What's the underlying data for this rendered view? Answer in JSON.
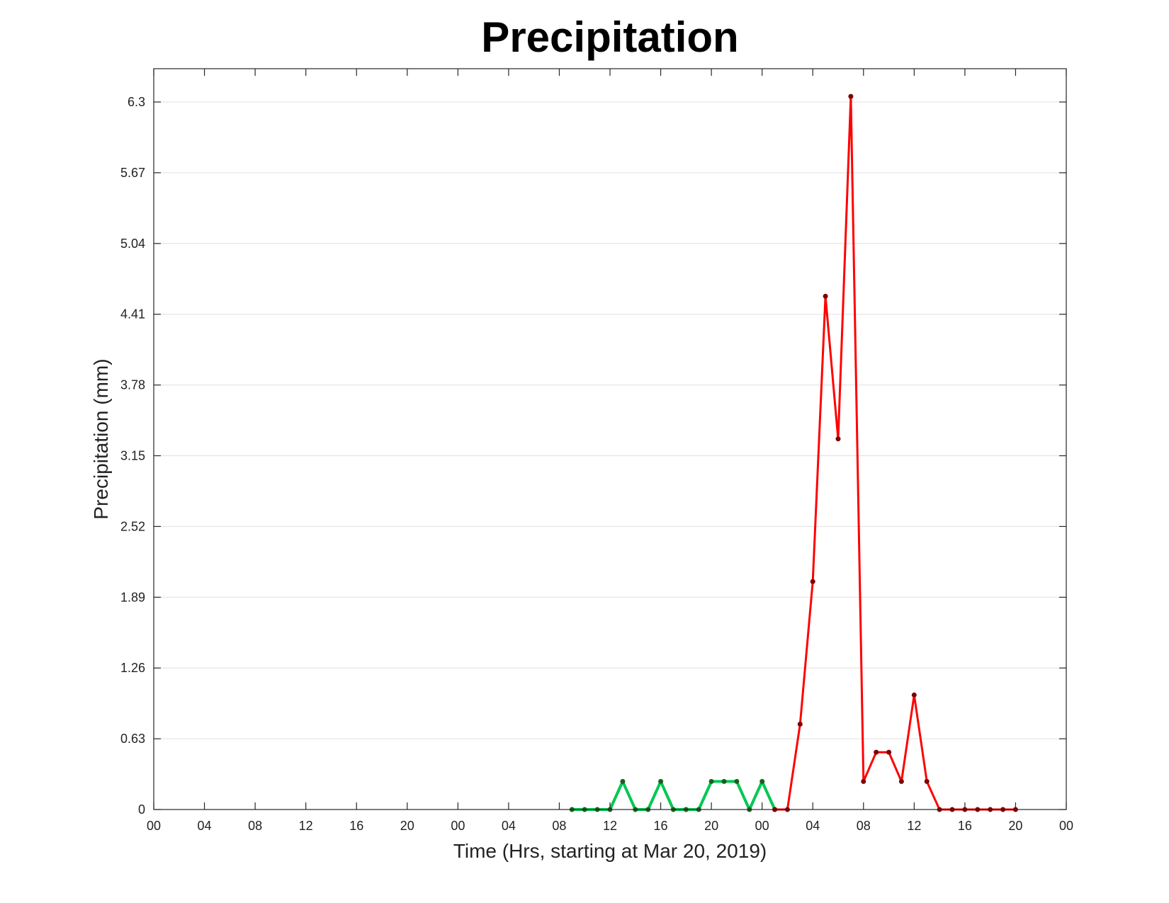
{
  "chart_data": {
    "type": "line",
    "title": "Precipitation",
    "xlabel": "Time (Hrs, starting at Mar 20, 2019)",
    "ylabel": "Precipitation (mm)",
    "x_unit": "hours",
    "xlim": [
      0,
      72
    ],
    "ylim": [
      0,
      6.6
    ],
    "x_tick_values": [
      0,
      4,
      8,
      12,
      16,
      20,
      24,
      28,
      32,
      36,
      40,
      44,
      48,
      52,
      56,
      60,
      64,
      68,
      72
    ],
    "x_tick_labels": [
      "00",
      "04",
      "08",
      "12",
      "16",
      "20",
      "00",
      "04",
      "08",
      "12",
      "16",
      "20",
      "00",
      "04",
      "08",
      "12",
      "16",
      "20",
      "00"
    ],
    "y_ticks": [
      0,
      0.63,
      1.26,
      1.89,
      2.52,
      3.15,
      3.78,
      4.41,
      5.04,
      5.67,
      6.3
    ],
    "y_tick_labels": [
      "0",
      "0.63",
      "1.26",
      "1.89",
      "2.52",
      "3.15",
      "3.78",
      "4.41",
      "5.04",
      "5.67",
      "6.3"
    ],
    "grid": "horizontal",
    "series": [
      {
        "color": "#00c853",
        "marker_color": "#1b5e20",
        "points": [
          [
            33,
            0
          ],
          [
            34,
            0
          ],
          [
            35,
            0
          ],
          [
            36,
            0
          ],
          [
            37,
            0.25
          ],
          [
            38,
            0
          ],
          [
            39,
            0
          ],
          [
            40,
            0.25
          ],
          [
            41,
            0
          ],
          [
            42,
            0
          ],
          [
            43,
            0
          ],
          [
            44,
            0.25
          ],
          [
            45,
            0.25
          ],
          [
            46,
            0.25
          ],
          [
            47,
            0
          ],
          [
            48,
            0.25
          ],
          [
            49,
            0
          ]
        ]
      },
      {
        "color": "#ff0000",
        "marker_color": "#7f0000",
        "points": [
          [
            49,
            0
          ],
          [
            50,
            0
          ],
          [
            51,
            0.76
          ],
          [
            52,
            2.03
          ],
          [
            53,
            4.57
          ],
          [
            54,
            3.3
          ],
          [
            55,
            6.35
          ],
          [
            56,
            0.25
          ],
          [
            57,
            0.51
          ],
          [
            58,
            0.51
          ],
          [
            59,
            0.25
          ],
          [
            60,
            1.02
          ],
          [
            61,
            0.25
          ],
          [
            62,
            0
          ],
          [
            63,
            0
          ],
          [
            64,
            0
          ],
          [
            65,
            0
          ],
          [
            66,
            0
          ],
          [
            67,
            0
          ],
          [
            68,
            0
          ]
        ]
      }
    ]
  }
}
